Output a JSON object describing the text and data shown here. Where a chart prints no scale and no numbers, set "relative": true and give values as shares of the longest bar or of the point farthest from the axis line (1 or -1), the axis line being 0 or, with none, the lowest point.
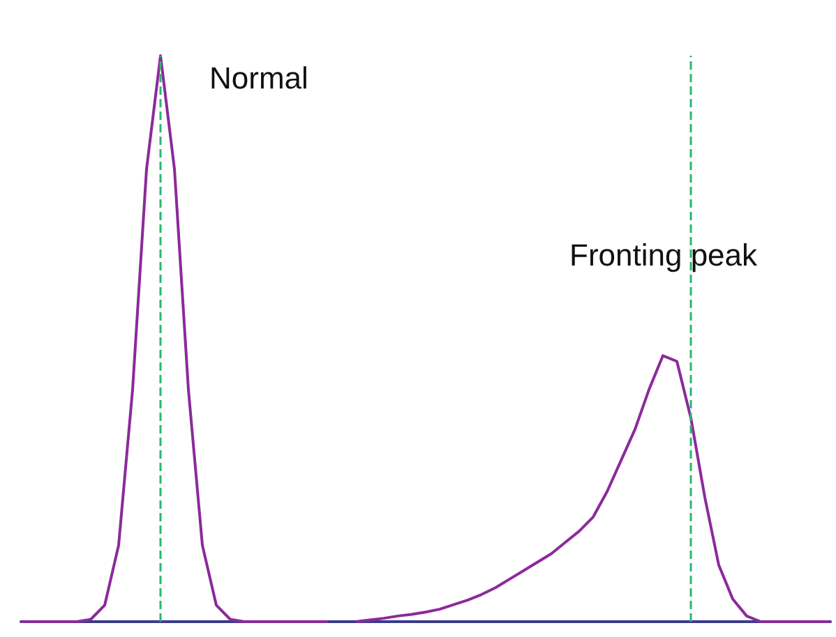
{
  "chart_data": {
    "type": "line",
    "relative": true,
    "grid": false,
    "marker": "none",
    "line_style": "solid",
    "categories": [
      null,
      null,
      null,
      null,
      null,
      null,
      null,
      null,
      null,
      null,
      null,
      null,
      null,
      null,
      null,
      null,
      null,
      null,
      null,
      null,
      null,
      null,
      null,
      null,
      null,
      null,
      null,
      null,
      null,
      null,
      null,
      null,
      null,
      null,
      null,
      null,
      null,
      null,
      null,
      null,
      null,
      null,
      null,
      null,
      null,
      null,
      null,
      null,
      null,
      null,
      null,
      null,
      null,
      null,
      null,
      null,
      null,
      null,
      null
    ],
    "series": [
      {
        "color": "#8b2a9b",
        "values": [
          0,
          0,
          0,
          0,
          0,
          0.004,
          0.029,
          0.135,
          0.41,
          0.8,
          1,
          0.8,
          0.41,
          0.135,
          0.029,
          0.004,
          0,
          0,
          0,
          0,
          0,
          0,
          0,
          null,
          null,
          null,
          null,
          null,
          null,
          null,
          null,
          null,
          null,
          null,
          null,
          null,
          null,
          null,
          null,
          null,
          null,
          null,
          null,
          null,
          null,
          null,
          null,
          null,
          null,
          null,
          null,
          null,
          null,
          null,
          null,
          null,
          null,
          null,
          null
        ]
      },
      {
        "color": "#8b2a9b",
        "values": [
          null,
          null,
          null,
          null,
          null,
          null,
          null,
          null,
          null,
          null,
          null,
          null,
          null,
          null,
          null,
          null,
          null,
          null,
          null,
          null,
          null,
          null,
          null,
          null,
          0,
          0.003,
          0.006,
          0.01,
          0.013,
          0.017,
          0.022,
          0.03,
          0.038,
          0.048,
          0.06,
          0.075,
          0.09,
          0.105,
          0.12,
          0.14,
          0.16,
          0.185,
          0.23,
          0.285,
          0.34,
          0.41,
          0.47,
          0.46,
          0.36,
          0.22,
          0.1,
          0.04,
          0.01,
          0,
          0,
          0,
          0,
          0,
          0
        ]
      }
    ],
    "annotations": [
      "Normal",
      "Fronting peak"
    ]
  }
}
